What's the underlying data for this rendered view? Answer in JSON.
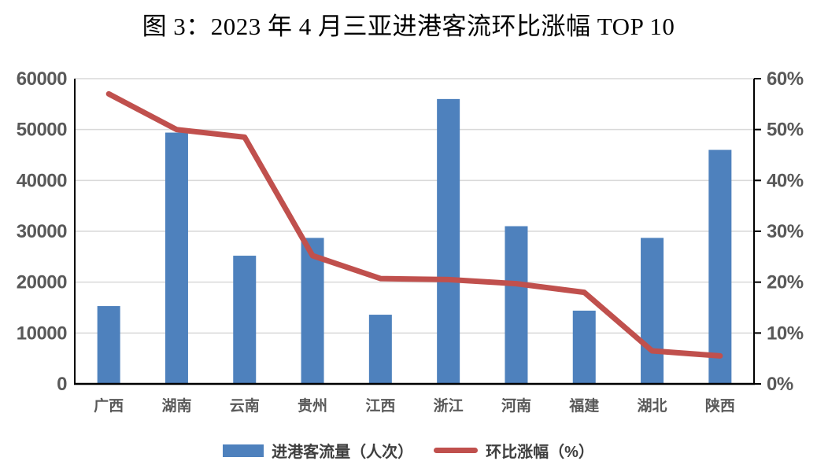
{
  "title": "图 3：2023 年 4 月三亚进港客流环比涨幅 TOP 10",
  "colors": {
    "bar": "#4E81BD",
    "line": "#C0504D",
    "grid": "#D9D9D9",
    "axis_line": "#000000",
    "tick_label": "#595959",
    "legend_text": "#3f3f3f"
  },
  "chart_data": {
    "type": "bar",
    "subtype": "bar+line combo, dual axis",
    "title": "图 3：2023 年 4 月三亚进港客流环比涨幅 TOP 10",
    "categories": [
      "广西",
      "湖南",
      "云南",
      "贵州",
      "江西",
      "浙江",
      "河南",
      "福建",
      "湖北",
      "陕西"
    ],
    "series": [
      {
        "name": "进港客流量（人次）",
        "type": "bar",
        "axis": "left",
        "color": "#4E81BD",
        "values": [
          15300,
          49400,
          25200,
          28700,
          13600,
          56000,
          31000,
          14400,
          28700,
          46000
        ]
      },
      {
        "name": "环比涨幅（%）",
        "type": "line",
        "axis": "right",
        "color": "#C0504D",
        "values": [
          57,
          50,
          48.5,
          25.2,
          20.7,
          20.5,
          19.7,
          18,
          6.5,
          5.5
        ]
      }
    ],
    "left_axis": {
      "min": 0,
      "max": 60000,
      "step": 10000,
      "tick_labels": [
        "0",
        "10000",
        "20000",
        "30000",
        "40000",
        "50000",
        "60000"
      ]
    },
    "right_axis": {
      "min": 0,
      "max": 60,
      "step": 10,
      "tick_labels": [
        "0%",
        "10%",
        "20%",
        "30%",
        "40%",
        "50%",
        "60%"
      ]
    },
    "grid": true,
    "legend_position": "bottom"
  }
}
